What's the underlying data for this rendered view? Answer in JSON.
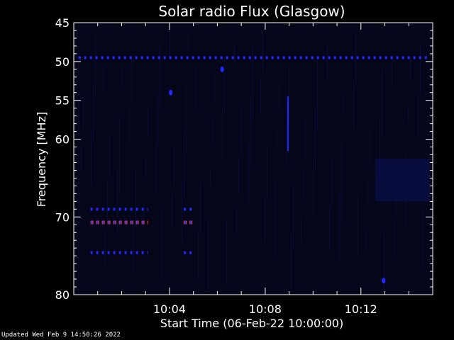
{
  "chart_data": {
    "type": "heatmap",
    "title": "Solar radio Flux (Glasgow)",
    "xlabel": "Start Time (06-Feb-22 10:00:00)",
    "ylabel": "Frequency [MHz]",
    "x_unit": "minutes after 10:00",
    "xlim": [
      0,
      15
    ],
    "ylim": [
      45,
      80
    ],
    "y_axis_inverted": true,
    "x_ticks": [
      {
        "value": 4,
        "label": "10:04"
      },
      {
        "value": 8,
        "label": "10:08"
      },
      {
        "value": 12,
        "label": "10:12"
      }
    ],
    "y_ticks": [
      {
        "value": 45,
        "label": "45"
      },
      {
        "value": 50,
        "label": "50"
      },
      {
        "value": 55,
        "label": "55"
      },
      {
        "value": 60,
        "label": "60"
      },
      {
        "value": 70,
        "label": "70"
      },
      {
        "value": 80,
        "label": "80"
      }
    ],
    "background_color": "#05061a",
    "colors": {
      "low": "#0a0f4a",
      "mid": "#1e2bff",
      "high": "#ff3b1a"
    },
    "features": [
      {
        "kind": "band",
        "freq": 49.5,
        "t_start": 0.2,
        "t_end": 14.9,
        "intensity": "mid",
        "dashed": true
      },
      {
        "kind": "band",
        "freq": 69.0,
        "t_start": 0.7,
        "t_end": 3.1,
        "intensity": "mid",
        "dashed": true
      },
      {
        "kind": "band",
        "freq": 69.0,
        "t_start": 4.6,
        "t_end": 5.0,
        "intensity": "mid",
        "dashed": true
      },
      {
        "kind": "band",
        "freq": 70.7,
        "t_start": 0.7,
        "t_end": 3.1,
        "intensity": "high",
        "dashed": true
      },
      {
        "kind": "band",
        "freq": 70.7,
        "t_start": 4.6,
        "t_end": 5.0,
        "intensity": "high",
        "dashed": true
      },
      {
        "kind": "band",
        "freq": 74.6,
        "t_start": 0.7,
        "t_end": 3.1,
        "intensity": "mid",
        "dashed": true
      },
      {
        "kind": "band",
        "freq": 74.6,
        "t_start": 4.6,
        "t_end": 5.0,
        "intensity": "mid",
        "dashed": true
      },
      {
        "kind": "line",
        "t": 8.95,
        "f_start": 54.5,
        "f_end": 61.5,
        "intensity": "mid"
      },
      {
        "kind": "blob",
        "t": 4.05,
        "freq": 54.0,
        "intensity": "mid"
      },
      {
        "kind": "blob",
        "t": 6.2,
        "freq": 51.0,
        "intensity": "mid"
      },
      {
        "kind": "blob",
        "t": 12.95,
        "freq": 78.2,
        "intensity": "mid"
      },
      {
        "kind": "region",
        "t_start": 12.6,
        "t_end": 14.9,
        "f_start": 62.5,
        "f_end": 68.0,
        "intensity": "low"
      }
    ]
  },
  "footer": {
    "updated": "Updated Wed Feb  9 14:50:26 2022"
  }
}
